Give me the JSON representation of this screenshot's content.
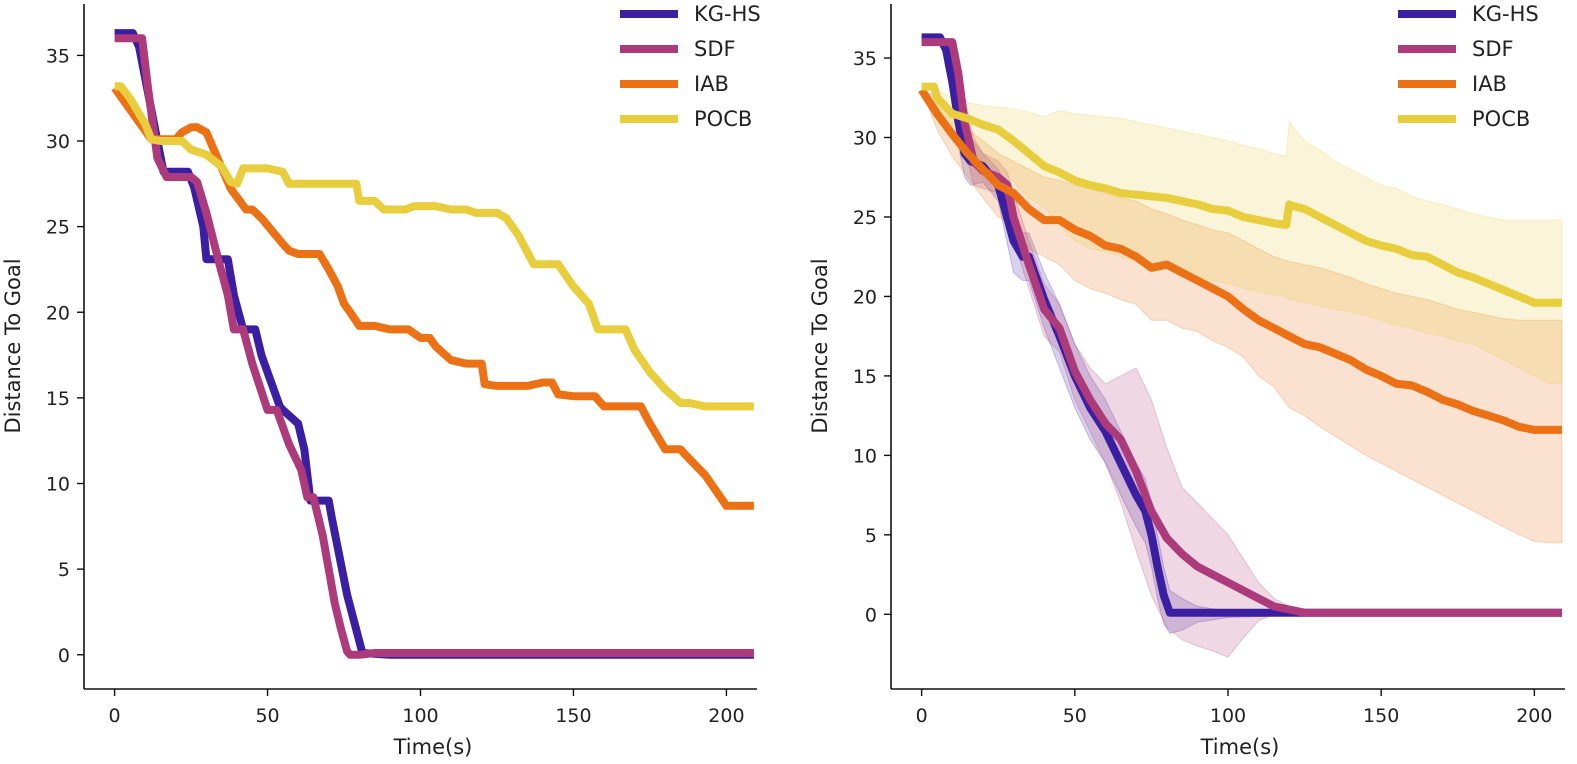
{
  "chart_data": [
    {
      "type": "line",
      "xlabel": "Time(s)",
      "ylabel": "Distance To Goal",
      "xlim": [
        -10,
        210
      ],
      "ylim": [
        -2,
        38
      ],
      "xticks": [
        0,
        50,
        100,
        150,
        200
      ],
      "yticks": [
        0,
        5,
        10,
        15,
        20,
        25,
        30,
        35
      ],
      "legend_position": "top-right",
      "series": [
        {
          "name": "KG-HS",
          "color": "#3b1fa3",
          "x": [
            0,
            6,
            8,
            14,
            16,
            24,
            26,
            29,
            30,
            37,
            39,
            42,
            46,
            48,
            54,
            55,
            60,
            62,
            64,
            70,
            71,
            76,
            81,
            90,
            209
          ],
          "y": [
            36.3,
            36.3,
            35.5,
            30,
            28.2,
            28.2,
            27.3,
            25,
            23.1,
            23.1,
            21,
            19,
            19,
            17.5,
            14.5,
            14.3,
            13.5,
            12,
            9,
            9,
            8,
            3.5,
            0.1,
            0,
            0
          ]
        },
        {
          "name": "SDF",
          "color": "#ad3a7a",
          "x": [
            0,
            9,
            11,
            14,
            17,
            25,
            27,
            30,
            34,
            37,
            39,
            42,
            45,
            50,
            53,
            57,
            61,
            63,
            65,
            68,
            70,
            72,
            74,
            76,
            77,
            80,
            85,
            90,
            209
          ],
          "y": [
            36,
            36,
            33,
            29,
            27.9,
            27.9,
            27.6,
            25.8,
            23,
            21,
            19,
            19,
            17,
            14.3,
            14.3,
            12.3,
            10.8,
            9.2,
            9.2,
            7,
            5,
            3,
            1.5,
            0.2,
            0,
            0,
            0.1,
            0.1,
            0.1
          ]
        },
        {
          "name": "IAB",
          "color": "#ec7014",
          "x": [
            0,
            12,
            17,
            20,
            22,
            25,
            27,
            30,
            38,
            43,
            45,
            48,
            55,
            57,
            60,
            62,
            65,
            67,
            70,
            73,
            75,
            77,
            80,
            83,
            85,
            90,
            93,
            96,
            100,
            103,
            105,
            110,
            115,
            120,
            121,
            125,
            130,
            135,
            140,
            143,
            145,
            150,
            157,
            160,
            163,
            170,
            172,
            175,
            180,
            185,
            187,
            193,
            200,
            209
          ],
          "y": [
            33.1,
            30.1,
            30.1,
            30.1,
            30.5,
            30.8,
            30.8,
            30.5,
            27.2,
            26,
            26,
            25.5,
            24,
            23.6,
            23.4,
            23.4,
            23.4,
            23.4,
            22.5,
            21.5,
            20.5,
            20,
            19.2,
            19.2,
            19.2,
            19,
            19,
            19,
            18.5,
            18.5,
            18,
            17.2,
            17,
            17,
            15.8,
            15.7,
            15.7,
            15.7,
            15.9,
            15.9,
            15.2,
            15.1,
            15.1,
            14.5,
            14.5,
            14.5,
            14.5,
            13.5,
            12,
            12,
            11.6,
            10.5,
            8.7,
            8.7
          ]
        },
        {
          "name": "POCB",
          "color": "#e8cd3c",
          "x": [
            0,
            2,
            5,
            10,
            12,
            15,
            20,
            22,
            25,
            30,
            35,
            38,
            40,
            42,
            45,
            47,
            50,
            55,
            57,
            60,
            65,
            70,
            73,
            79,
            80,
            82,
            85,
            88,
            90,
            95,
            98,
            100,
            105,
            110,
            115,
            118,
            120,
            125,
            128,
            132,
            137,
            140,
            145,
            150,
            155,
            158,
            162,
            165,
            167,
            170,
            175,
            180,
            185,
            188,
            193,
            200,
            209
          ],
          "y": [
            33.2,
            33.2,
            32.5,
            31,
            30.1,
            30,
            30,
            30,
            29.5,
            29.2,
            28.5,
            27.6,
            27.5,
            28.4,
            28.4,
            28.4,
            28.4,
            28.2,
            27.5,
            27.5,
            27.5,
            27.5,
            27.5,
            27.5,
            26.5,
            26.5,
            26.5,
            26,
            26,
            26,
            26.2,
            26.2,
            26.2,
            26,
            26,
            25.8,
            25.8,
            25.8,
            25.5,
            24.5,
            22.8,
            22.8,
            22.8,
            21.5,
            20.5,
            19,
            19,
            19,
            19,
            17.8,
            16.5,
            15.5,
            14.7,
            14.7,
            14.5,
            14.5,
            14.5
          ]
        }
      ]
    },
    {
      "type": "line",
      "xlabel": "Time(s)",
      "ylabel": "Distance To Goal",
      "xlim": [
        -10,
        210
      ],
      "ylim": [
        -4.7,
        38.4
      ],
      "xticks": [
        0,
        50,
        100,
        150,
        200
      ],
      "yticks": [
        0,
        5,
        10,
        15,
        20,
        25,
        30,
        35
      ],
      "legend_position": "top-right",
      "series": [
        {
          "name": "KG-HS",
          "color": "#3b1fa3",
          "x": [
            0,
            6,
            8,
            10,
            12,
            14,
            16,
            20,
            25,
            30,
            33,
            35,
            40,
            45,
            50,
            55,
            60,
            65,
            70,
            73,
            75,
            77,
            79,
            81,
            85,
            90,
            100,
            150,
            209
          ],
          "y": [
            36.3,
            36.3,
            35.5,
            33.5,
            31,
            29,
            28.5,
            28.2,
            27,
            23.5,
            22.5,
            22.5,
            19.8,
            17.5,
            15,
            13,
            11.5,
            9.5,
            7.5,
            6.5,
            5,
            3,
            1.2,
            0.1,
            0.1,
            0.1,
            0.1,
            0.1,
            0.1
          ],
          "band_upper": [
            36.3,
            36.3,
            36,
            34.5,
            32.5,
            31,
            30,
            29,
            28,
            25.5,
            24,
            24,
            21.5,
            19.5,
            17,
            15,
            13.5,
            11.5,
            9.5,
            8.5,
            7,
            5,
            3,
            1.5,
            1,
            0.5,
            0.2,
            0.1,
            0.1
          ],
          "band_lower": [
            36.3,
            36.3,
            35,
            32.5,
            29.5,
            27.5,
            27,
            27.2,
            26,
            21.5,
            21,
            21,
            18,
            15.5,
            13,
            11,
            9.5,
            7.5,
            5.5,
            4.5,
            3,
            1,
            -0.6,
            -1.2,
            -1,
            -0.5,
            -0.2,
            0.1,
            0.1
          ]
        },
        {
          "name": "SDF",
          "color": "#ad3a7a",
          "x": [
            0,
            10,
            12,
            14,
            17,
            20,
            25,
            28,
            30,
            35,
            40,
            45,
            50,
            55,
            60,
            65,
            70,
            75,
            80,
            85,
            90,
            95,
            100,
            105,
            110,
            115,
            120,
            125,
            130,
            140,
            150,
            160,
            180,
            209
          ],
          "y": [
            36,
            36,
            34,
            31,
            28.5,
            27.9,
            27.5,
            27,
            25,
            22,
            19.2,
            18,
            15.3,
            13.5,
            12,
            11,
            9,
            6.5,
            4.8,
            3.8,
            3,
            2.5,
            2,
            1.5,
            1,
            0.5,
            0.3,
            0.1,
            0.1,
            0.1,
            0.1,
            0.1,
            0.1,
            0.1
          ],
          "band_upper": [
            36,
            36,
            35,
            32.5,
            30,
            29,
            28.5,
            27.8,
            26.5,
            23.5,
            20.8,
            19.5,
            17,
            15.5,
            14.5,
            15,
            15.5,
            13.5,
            10.5,
            8,
            7,
            6,
            5,
            3.5,
            2,
            1,
            0.5,
            0.2,
            0.1,
            0.1,
            0.1,
            0.1,
            0.1,
            0.1
          ],
          "band_lower": [
            36,
            36,
            33,
            29.5,
            27,
            26.8,
            26.5,
            26,
            23.5,
            20.5,
            17.5,
            16.5,
            13.5,
            11.5,
            9.5,
            7,
            4,
            1.2,
            -0.8,
            -1.6,
            -2,
            -2.3,
            -2.7,
            -1.5,
            -0.4,
            0,
            0.1,
            0.1,
            0.1,
            0.1,
            0.1,
            0.1,
            0.1,
            0.1
          ]
        },
        {
          "name": "IAB",
          "color": "#ec7014",
          "x": [
            0,
            5,
            10,
            15,
            20,
            25,
            30,
            35,
            40,
            45,
            50,
            55,
            60,
            65,
            70,
            75,
            80,
            85,
            90,
            95,
            100,
            105,
            110,
            115,
            120,
            125,
            130,
            135,
            140,
            145,
            150,
            155,
            160,
            165,
            170,
            175,
            180,
            185,
            190,
            195,
            200,
            205,
            209
          ],
          "y": [
            33,
            31.5,
            30.2,
            29,
            28,
            27,
            26.5,
            25.5,
            24.8,
            24.8,
            24.2,
            23.8,
            23.2,
            23,
            22.5,
            21.8,
            22,
            21.5,
            21,
            20.5,
            20,
            19.2,
            18.5,
            18,
            17.5,
            17,
            16.8,
            16.4,
            16,
            15.4,
            15,
            14.5,
            14.4,
            14,
            13.5,
            13.2,
            12.8,
            12.5,
            12.2,
            11.8,
            11.6,
            11.6,
            11.6
          ],
          "band_upper": [
            33,
            32.5,
            31.5,
            30.5,
            29.8,
            29,
            28.5,
            28,
            27.5,
            27.3,
            27,
            26.8,
            26.5,
            26.2,
            26,
            25.5,
            25.2,
            24.8,
            24.5,
            24.2,
            24,
            23.5,
            23,
            22.5,
            22.2,
            22,
            21.8,
            21.5,
            21.2,
            20.8,
            20.5,
            20.2,
            20,
            19.8,
            19.5,
            19.2,
            19,
            18.8,
            18.6,
            18.5,
            18.5,
            18.5,
            18.5
          ],
          "band_lower": [
            33,
            30.5,
            28.8,
            27.5,
            26.2,
            25,
            24.5,
            23,
            22.5,
            22,
            21,
            20.5,
            20.2,
            19.8,
            19.5,
            18.5,
            18.5,
            18,
            17.8,
            17.2,
            16.8,
            16.2,
            15,
            14.3,
            13,
            12.5,
            11.8,
            11.2,
            10.6,
            10,
            9.5,
            9,
            8.5,
            8,
            7.5,
            7,
            6.5,
            6,
            5.5,
            5,
            4.6,
            4.5,
            4.5
          ]
        },
        {
          "name": "POCB",
          "color": "#e8cd3c",
          "x": [
            0,
            4,
            5,
            10,
            15,
            20,
            25,
            30,
            35,
            40,
            45,
            50,
            55,
            60,
            65,
            70,
            75,
            80,
            85,
            90,
            95,
            100,
            105,
            110,
            115,
            119,
            120,
            121,
            125,
            130,
            135,
            140,
            145,
            150,
            155,
            160,
            165,
            170,
            175,
            180,
            185,
            190,
            195,
            200,
            205,
            209
          ],
          "y": [
            33.2,
            33.2,
            32.5,
            31.5,
            31.2,
            30.8,
            30.5,
            29.8,
            29,
            28.2,
            27.8,
            27.3,
            27,
            26.8,
            26.5,
            26.4,
            26.3,
            26.2,
            26,
            25.8,
            25.5,
            25.4,
            25,
            24.8,
            24.6,
            24.5,
            25.8,
            25.7,
            25.5,
            25,
            24.5,
            24,
            23.5,
            23.2,
            23,
            22.6,
            22.5,
            22,
            21.5,
            21.2,
            20.8,
            20.4,
            20,
            19.6,
            19.6,
            19.6
          ],
          "band_upper": [
            33.2,
            33.2,
            33,
            32.5,
            32.2,
            32,
            31.9,
            31.8,
            31.6,
            31.3,
            31.7,
            31.5,
            31.4,
            31.3,
            31.2,
            31,
            30.8,
            30.6,
            30.4,
            30.2,
            30,
            29.8,
            29.5,
            29.3,
            29,
            28.8,
            31,
            30.7,
            29.8,
            29.2,
            28.5,
            28,
            27.5,
            27,
            26.8,
            26.3,
            26,
            25.8,
            25.5,
            25.2,
            25,
            24.8,
            24.8,
            24.8,
            24.8,
            24.8
          ],
          "band_lower": [
            33.2,
            33.2,
            32,
            30.5,
            29.5,
            28.5,
            28,
            27.2,
            26.2,
            25.6,
            24.5,
            23.5,
            23,
            22.8,
            22.5,
            22.2,
            22,
            21.8,
            21.5,
            21.2,
            21,
            20.8,
            20.5,
            20.3,
            20.1,
            20,
            19.8,
            19.8,
            19.6,
            19.4,
            19.2,
            19,
            18.8,
            18.5,
            18.2,
            18,
            17.7,
            17.5,
            17.2,
            17,
            16.5,
            16,
            15.5,
            15,
            14.5,
            14.5
          ]
        }
      ]
    }
  ]
}
